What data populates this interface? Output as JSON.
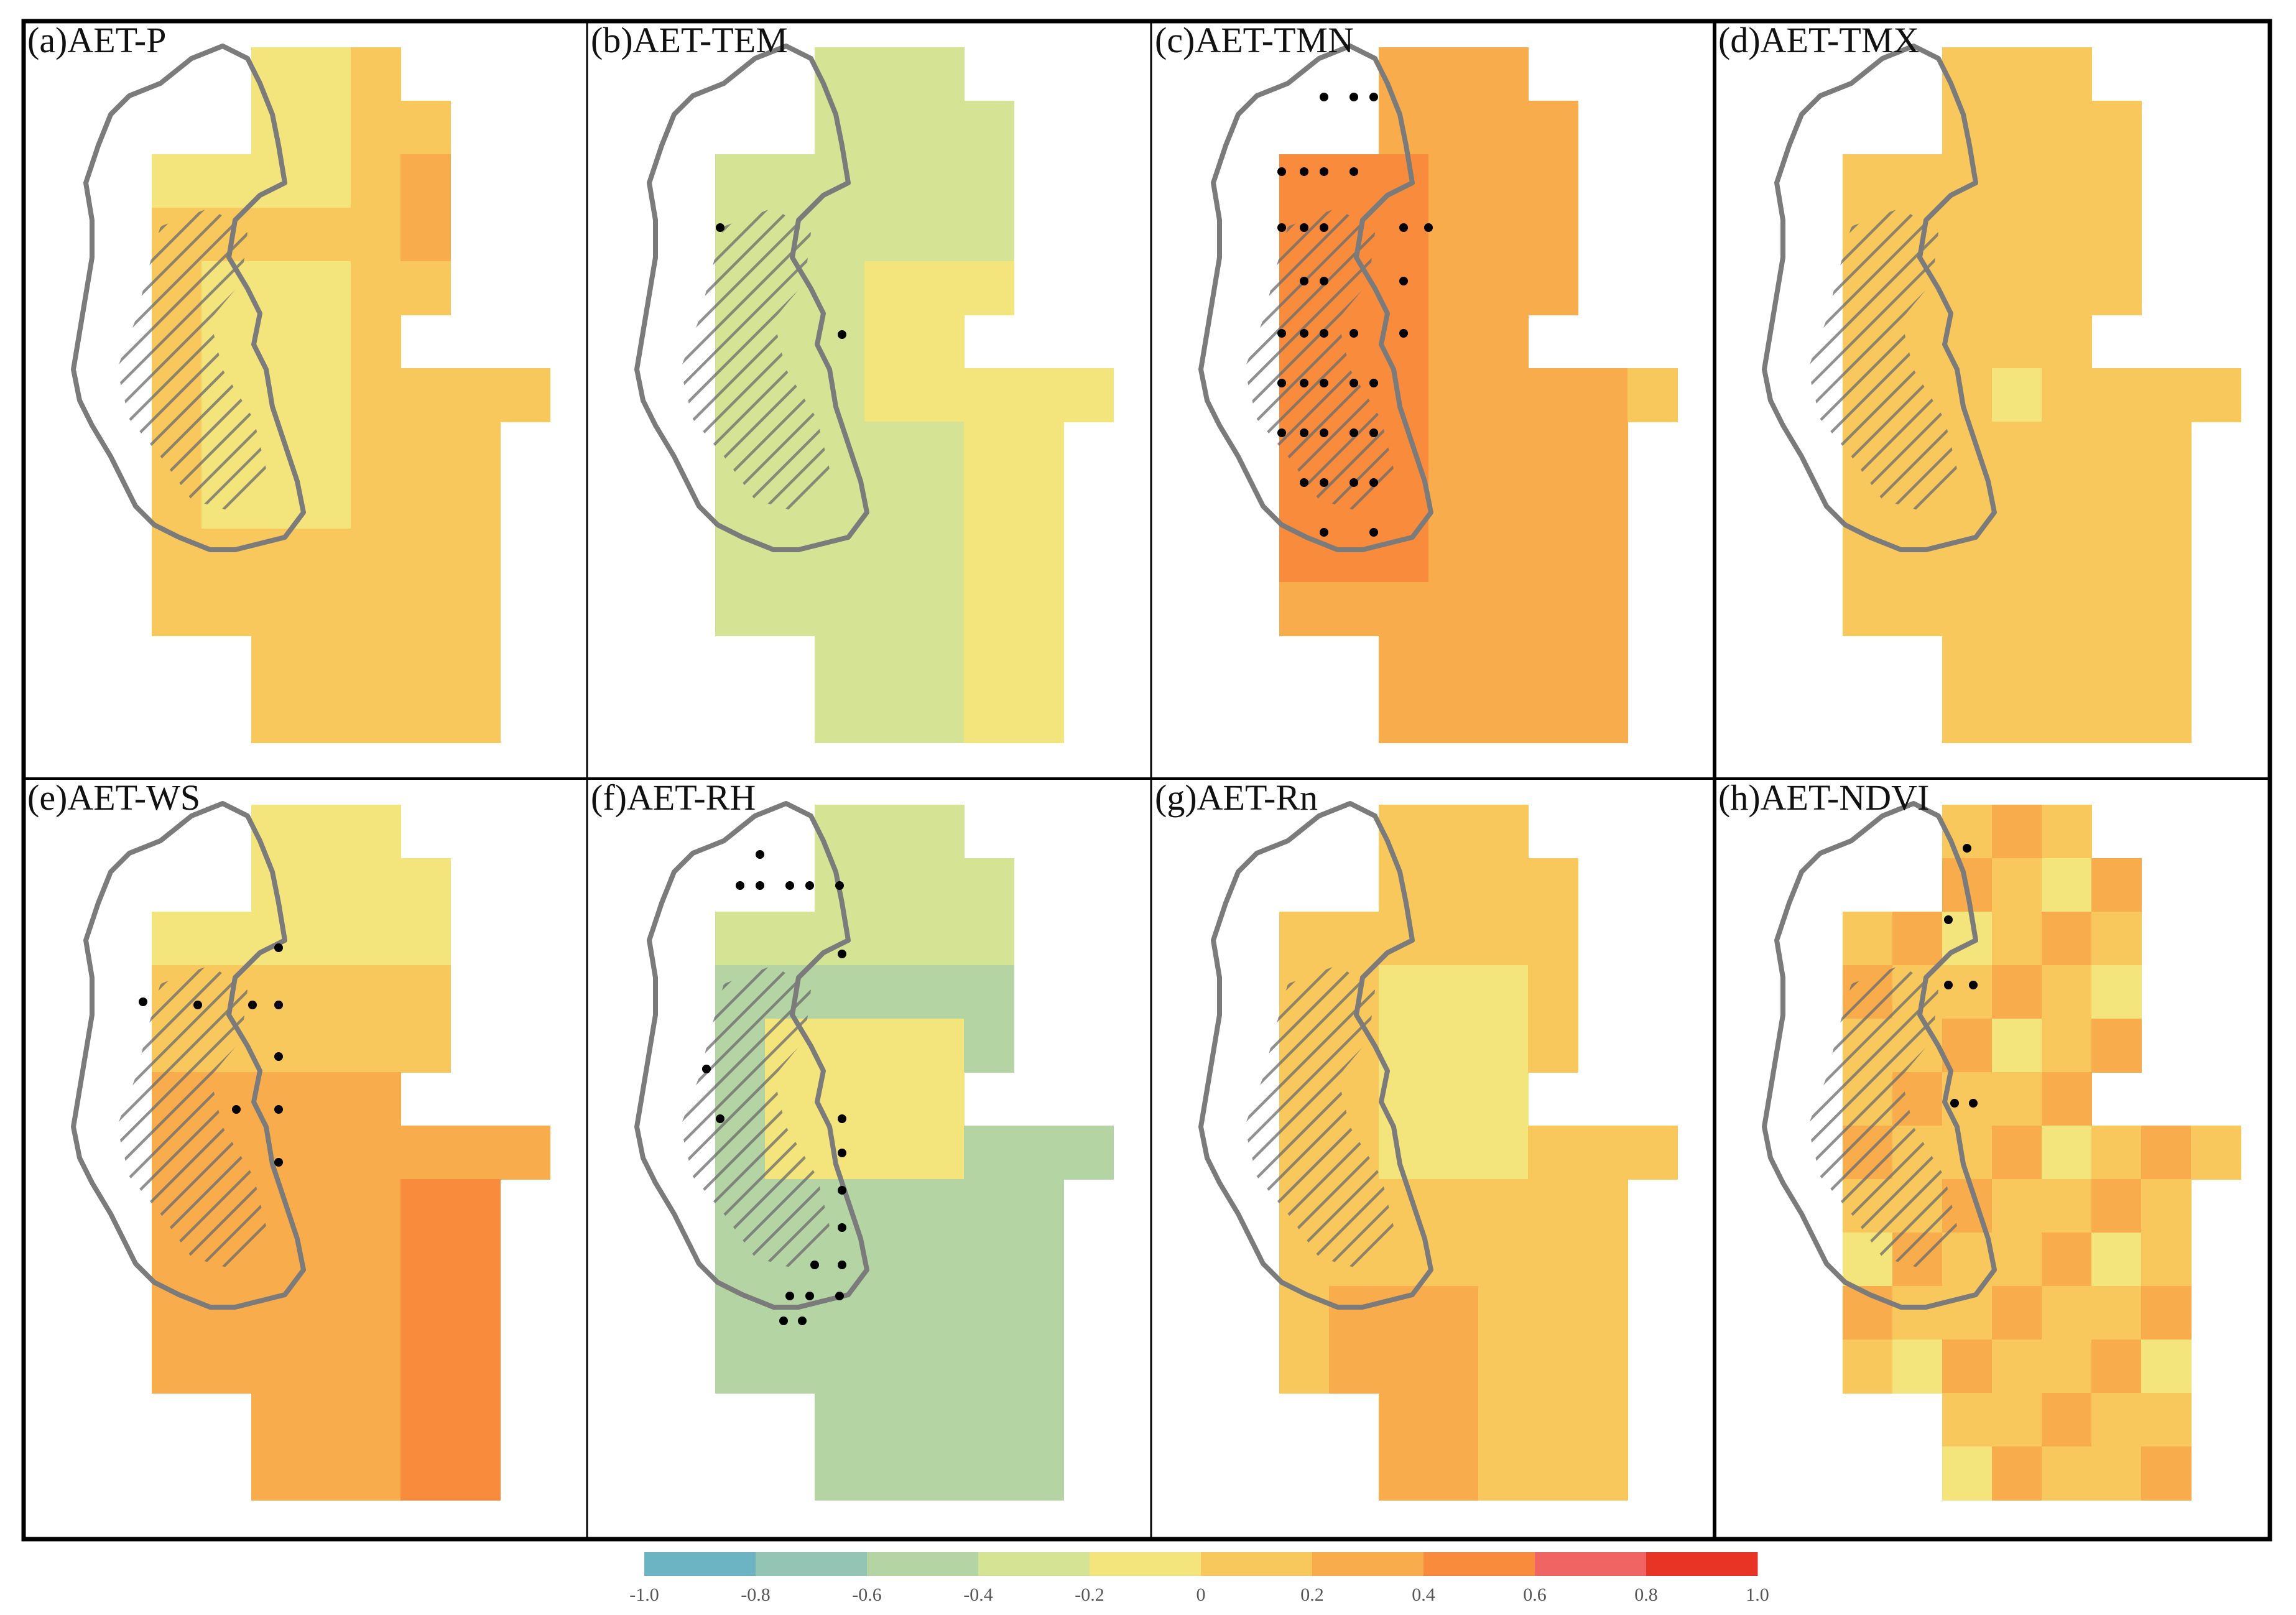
{
  "panels": [
    {
      "label": "(a)AET-P",
      "lightCol": 5,
      "base": 5,
      "pattern": "p"
    },
    {
      "label": "(b)AET-TEM",
      "lightCol": 3,
      "base": 3,
      "pattern": "tem",
      "dots": "tem"
    },
    {
      "label": "(c)AET-TMN",
      "lightCol": 6,
      "base": 6,
      "pattern": "tmn",
      "dots": "tmn"
    },
    {
      "label": "(d)AET-TMX",
      "lightCol": 5,
      "base": 5,
      "pattern": "flat"
    },
    {
      "label": "(e)AET-WS",
      "lightCol": 4,
      "base": 5,
      "pattern": "ws",
      "dots": "ws"
    },
    {
      "label": "(f)AET-RH",
      "lightCol": 3,
      "base": 2,
      "pattern": "rh",
      "dots": "rh"
    },
    {
      "label": "(g)AET-Rn",
      "lightCol": 5,
      "base": 5,
      "pattern": "rn"
    },
    {
      "label": "(h)AET-NDVI",
      "lightCol": 5,
      "base": 5,
      "pattern": "ndvi",
      "dots": "ndvi"
    }
  ],
  "colorbar": {
    "ticks": [
      "-1.0",
      "-0.8",
      "-0.6",
      "-0.4",
      "-0.2",
      "0",
      "0.2",
      "0.4",
      "0.6",
      "0.8",
      "1.0"
    ],
    "colors": [
      "#6cb4c4",
      "#94c4b4",
      "#b4d4a4",
      "#d4e494",
      "#f4e47c",
      "#f8c85c",
      "#f8ac4c",
      "#f88c3c",
      "#f06464",
      "#e83424"
    ]
  }
}
